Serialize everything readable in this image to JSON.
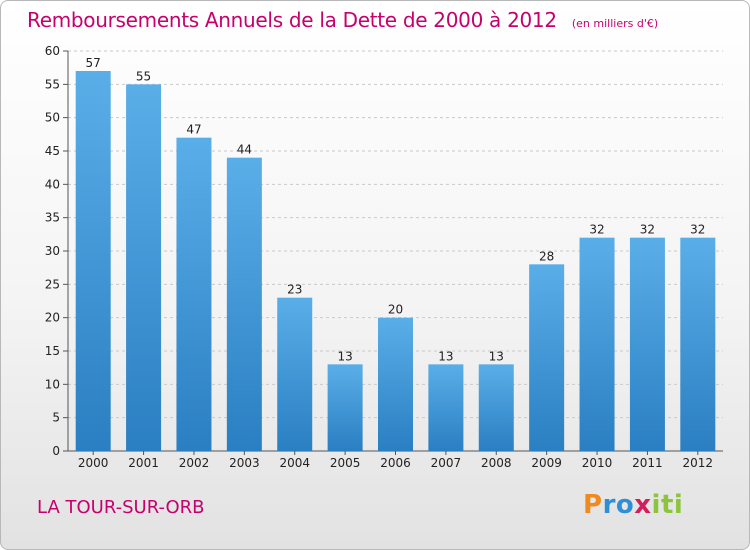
{
  "chart_data": {
    "type": "bar",
    "title": "Remboursements Annuels de la Dette de 2000 à 2012",
    "subtitle": "(en milliers d'€)",
    "categories": [
      "2000",
      "2001",
      "2002",
      "2003",
      "2004",
      "2005",
      "2006",
      "2007",
      "2008",
      "2009",
      "2010",
      "2011",
      "2012"
    ],
    "values": [
      57,
      55,
      47,
      44,
      23,
      13,
      20,
      13,
      13,
      28,
      32,
      32,
      32
    ],
    "ylim": [
      0,
      60
    ],
    "yticks": [
      0,
      5,
      10,
      15,
      20,
      25,
      30,
      35,
      40,
      45,
      50,
      55,
      60
    ],
    "grid": true,
    "bar_color_top": "#5aaee8",
    "bar_color_bottom": "#2a7fc2",
    "title_color": "#c8006e"
  },
  "footer": {
    "location": "LA TOUR-SUR-ORB",
    "logo_letters": [
      {
        "ch": "P",
        "color": "#f08a1c"
      },
      {
        "ch": "r",
        "color": "#2e8fd6"
      },
      {
        "ch": "o",
        "color": "#2e8fd6"
      },
      {
        "ch": "x",
        "color": "#d21e5a"
      },
      {
        "ch": "i",
        "color": "#8cc43c"
      },
      {
        "ch": "t",
        "color": "#8cc43c"
      },
      {
        "ch": "i",
        "color": "#8cc43c"
      }
    ]
  }
}
